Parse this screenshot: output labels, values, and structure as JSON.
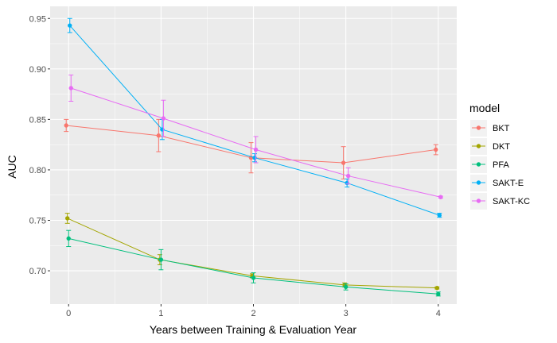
{
  "chart_data": {
    "type": "line",
    "xlabel": "Years between Training & Evaluation Year",
    "ylabel": "AUC",
    "x": [
      0,
      1,
      2,
      3,
      4
    ],
    "x_tick_labels": [
      "0",
      "1",
      "2",
      "3",
      "4"
    ],
    "y_tick_labels": [
      "0.70",
      "0.75",
      "0.80",
      "0.85",
      "0.90",
      "0.95"
    ],
    "y_ticks": [
      0.7,
      0.75,
      0.8,
      0.85,
      0.9,
      0.95
    ],
    "xlim": [
      -0.2,
      4.2
    ],
    "ylim": [
      0.667,
      0.962
    ],
    "grid": true,
    "panel_background": "#ebebeb",
    "legend": {
      "title": "model",
      "placement": "right"
    },
    "series": [
      {
        "name": "BKT",
        "color": "#f8766d",
        "x": [
          0,
          1,
          2,
          3,
          4
        ],
        "values": [
          0.844,
          0.834,
          0.812,
          0.807,
          0.82
        ],
        "err": [
          0.006,
          0.016,
          0.015,
          0.016,
          0.005
        ]
      },
      {
        "name": "DKT",
        "color": "#a3a500",
        "x": [
          0,
          1,
          2,
          3,
          4
        ],
        "values": [
          0.752,
          0.711,
          0.695,
          0.686,
          0.683
        ],
        "err": [
          0.005,
          0.005,
          0.002,
          0.002,
          0.001
        ]
      },
      {
        "name": "PFA",
        "color": "#00bf7d",
        "x": [
          0,
          1,
          2,
          3,
          4
        ],
        "values": [
          0.732,
          0.711,
          0.693,
          0.684,
          0.677
        ],
        "err": [
          0.008,
          0.01,
          0.005,
          0.003,
          0.002
        ]
      },
      {
        "name": "SAKT-E",
        "color": "#00b0f6",
        "x": [
          0,
          1,
          2,
          3,
          4
        ],
        "values": [
          0.943,
          0.84,
          0.812,
          0.787,
          0.755
        ],
        "err": [
          0.007,
          0.01,
          0.004,
          0.004,
          0.002
        ]
      },
      {
        "name": "SAKT-KC",
        "color": "#e76bf3",
        "x": [
          0,
          1,
          2,
          3,
          4
        ],
        "values": [
          0.881,
          0.851,
          0.82,
          0.794,
          0.773
        ],
        "err": [
          0.013,
          0.018,
          0.013,
          0.008,
          0.001
        ]
      }
    ]
  }
}
